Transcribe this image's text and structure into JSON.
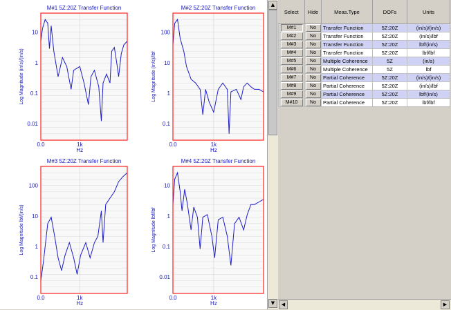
{
  "plots": [
    {
      "id": "p1",
      "title": "M#1 5Z:20Z Transfer Function",
      "ylabel": "Log Magnitude (in/s)/(in/s)",
      "xlabel": "Hz",
      "yticks": [
        "10",
        "1",
        "0.1",
        "0.01"
      ],
      "xticks": [
        "0.0",
        "1k"
      ],
      "color": "#1c1cc8"
    },
    {
      "id": "p2",
      "title": "M#2 5Z:20Z Transfer Function",
      "ylabel": "Log Magnitude (in/s)/lbf",
      "xlabel": "Hz",
      "yticks": [
        "100",
        "10",
        "1",
        "0.1"
      ],
      "xticks": [
        "0.0",
        "1k"
      ],
      "color": "#1c1cc8"
    },
    {
      "id": "p3",
      "title": "M#3 5Z:20Z Transfer Function",
      "ylabel": "Log Magnitude lbf/(in/s)",
      "xlabel": "Hz",
      "yticks": [
        "100",
        "10",
        "1",
        "0.1"
      ],
      "xticks": [
        "0.0",
        "1k"
      ],
      "color": "#1c1cc8"
    },
    {
      "id": "p4",
      "title": "M#4 5Z:20Z Transfer Function",
      "ylabel": "Log Magnitude lbf/lbf",
      "xlabel": "Hz",
      "yticks": [
        "10",
        "1",
        "0.1",
        "0.01"
      ],
      "xticks": [
        "0.0",
        "1k"
      ],
      "color": "#1c1cc8"
    }
  ],
  "table": {
    "headers": {
      "select": "Select",
      "hide": "Hide",
      "type": "Meas.Type",
      "dofs": "DOFs",
      "units": "Units"
    },
    "rows": [
      {
        "select": "M#1",
        "hide": "No",
        "type": "Transfer Function",
        "dofs": "5Z:20Z",
        "units": "(in/s)/(in/s)"
      },
      {
        "select": "M#2",
        "hide": "No",
        "type": "Transfer Function",
        "dofs": "5Z:20Z",
        "units": "(in/s)/lbf"
      },
      {
        "select": "M#3",
        "hide": "No",
        "type": "Transfer Function",
        "dofs": "5Z:20Z",
        "units": "lbf/(in/s)"
      },
      {
        "select": "M#4",
        "hide": "No",
        "type": "Transfer Function",
        "dofs": "5Z:20Z",
        "units": "lbf/lbf"
      },
      {
        "select": "M#5",
        "hide": "No",
        "type": "Multiple Coherence",
        "dofs": "5Z",
        "units": "(in/s)"
      },
      {
        "select": "M#6",
        "hide": "No",
        "type": "Multiple Coherence",
        "dofs": "5Z",
        "units": "lbf"
      },
      {
        "select": "M#7",
        "hide": "No",
        "type": "Partial Coherence",
        "dofs": "5Z:20Z",
        "units": "(in/s)/(in/s)"
      },
      {
        "select": "M#8",
        "hide": "No",
        "type": "Partial Coherence",
        "dofs": "5Z:20Z",
        "units": "(in/s)/lbf"
      },
      {
        "select": "M#9",
        "hide": "No",
        "type": "Partial Coherence",
        "dofs": "5Z:20Z",
        "units": "lbf/(in/s)"
      },
      {
        "select": "M#10",
        "hide": "No",
        "type": "Partial Coherence",
        "dofs": "5Z:20Z",
        "units": "lbf/lbf"
      }
    ]
  },
  "colors": {
    "frame": "#ff2020",
    "curve": "#1c1cc8",
    "row_highlight": "#cfd2f5"
  },
  "icons": {
    "scroll_up": "up-arrow-icon",
    "scroll_down": "down-arrow-icon",
    "scroll_left": "left-arrow-icon",
    "scroll_right": "right-arrow-icon"
  }
}
